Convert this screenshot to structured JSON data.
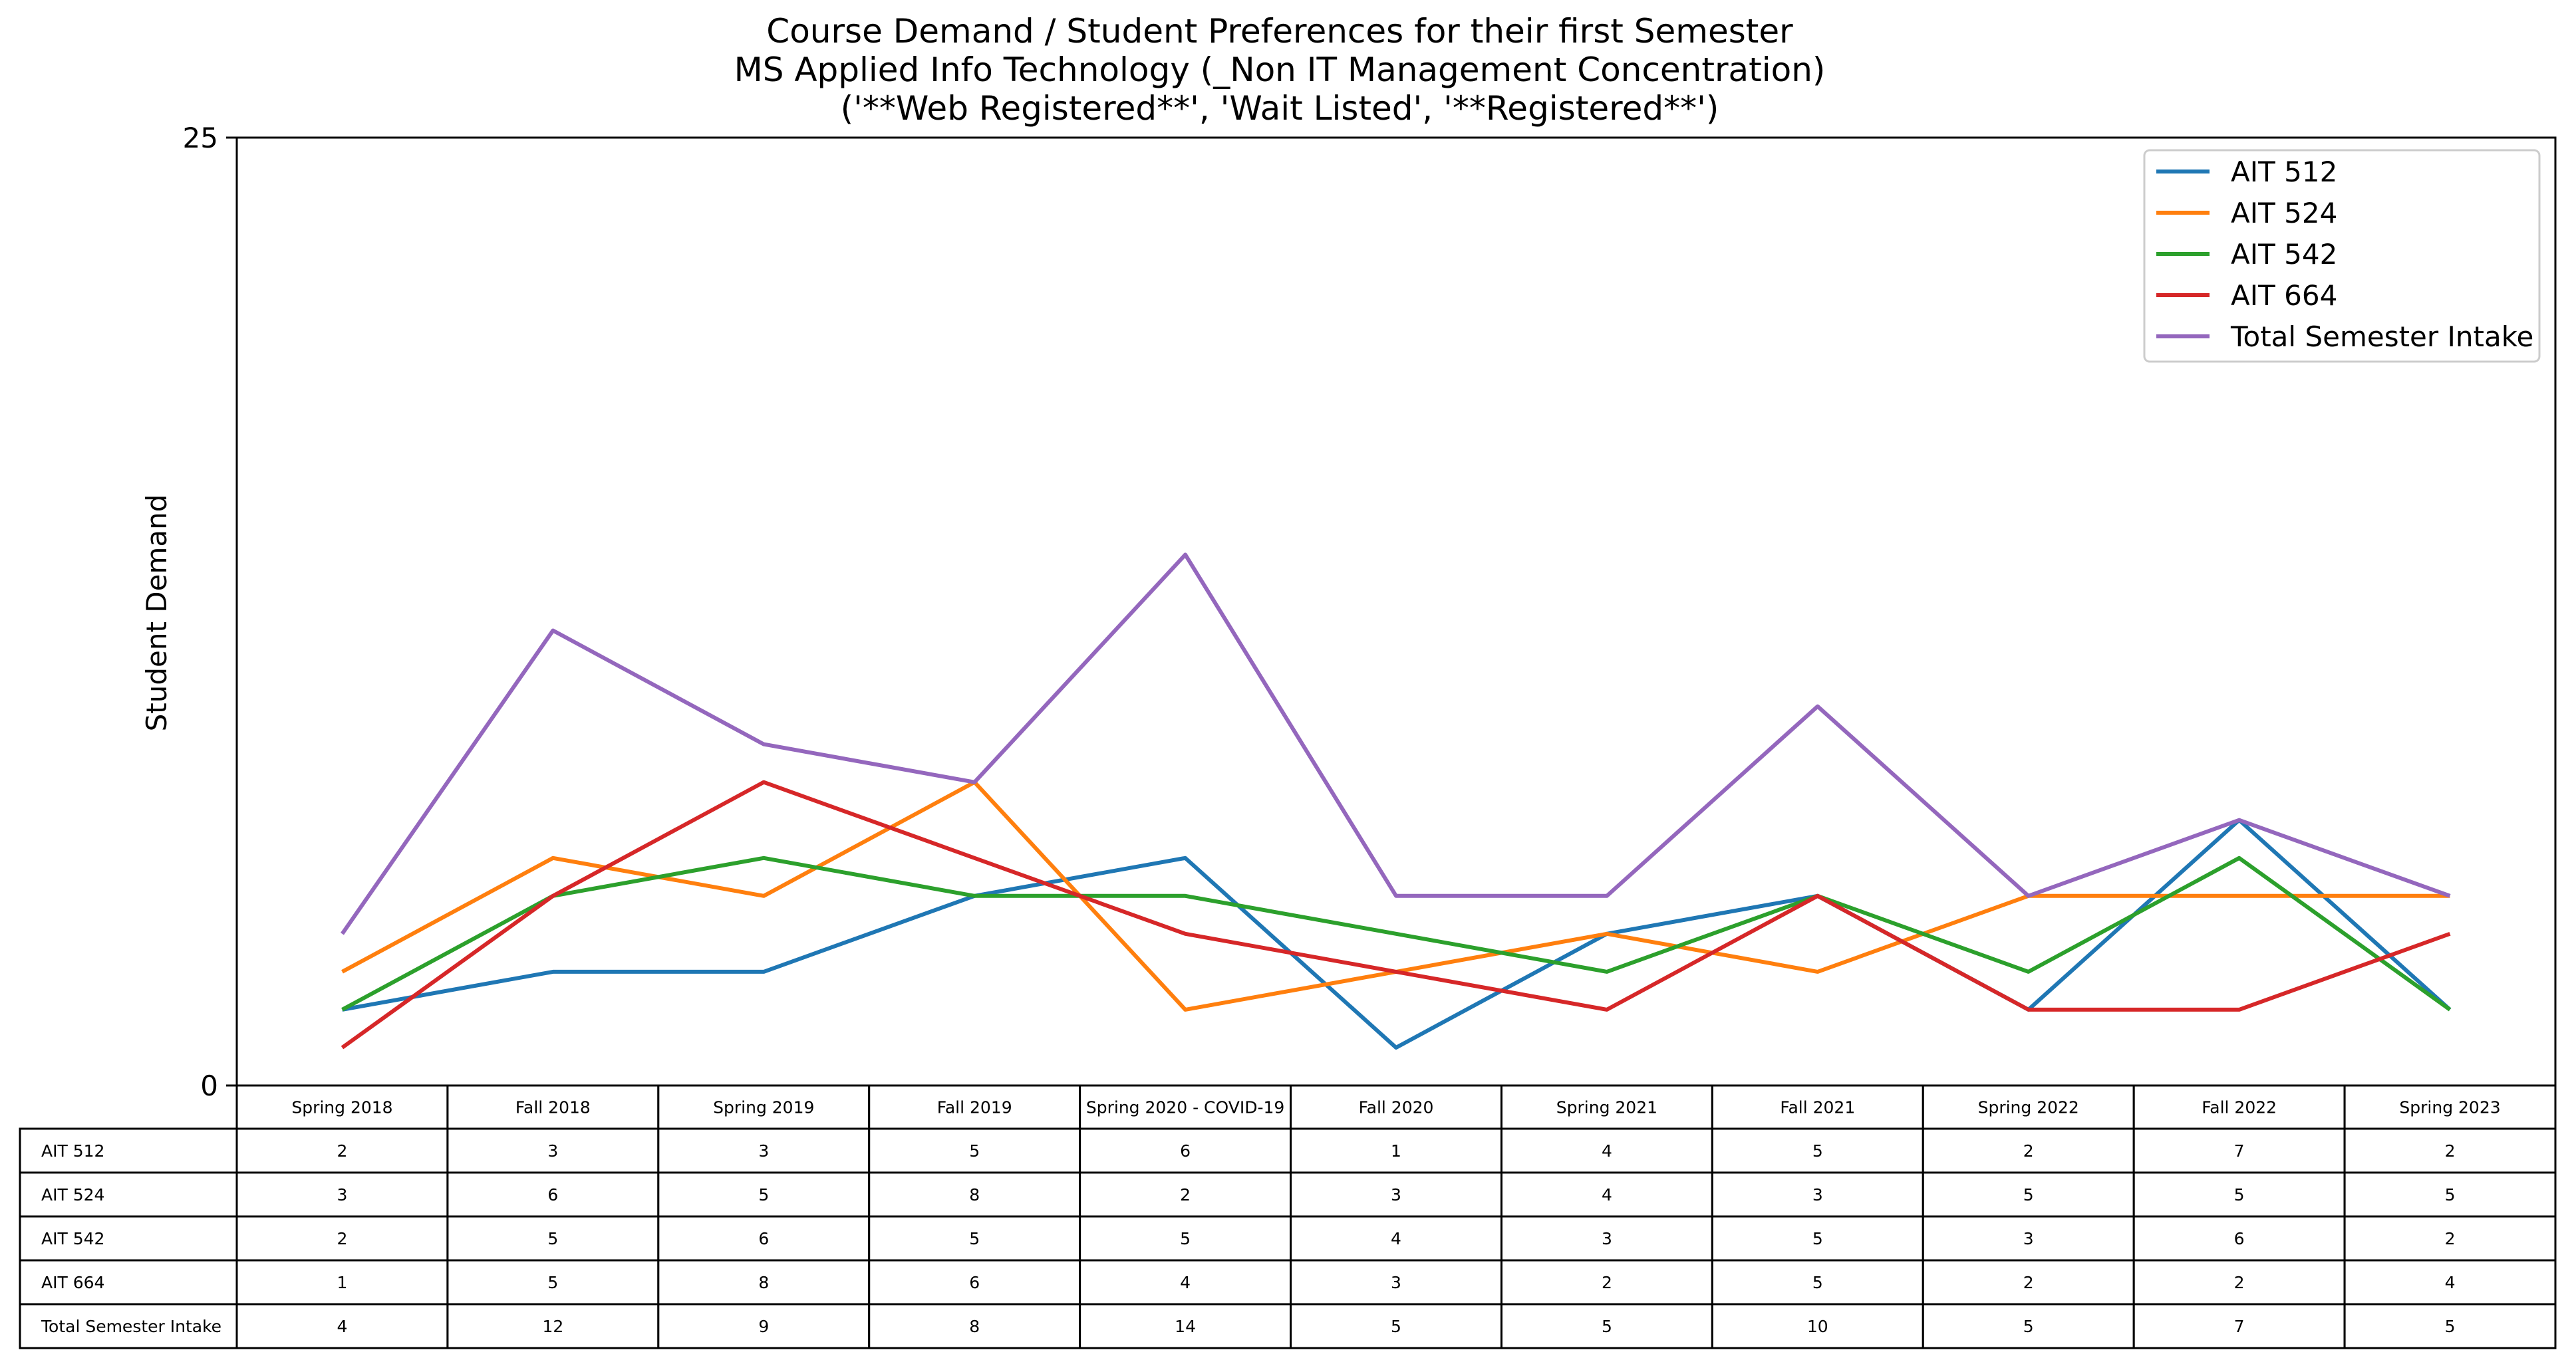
{
  "chart_data": {
    "type": "line",
    "title_lines": [
      "Course Demand / Student Preferences for their first Semester",
      "MS Applied Info Technology (_Non IT Management Concentration)",
      "('**Web Registered**', 'Wait Listed', '**Registered**')"
    ],
    "xlabel": "",
    "ylabel": "Student Demand",
    "ylim": [
      0,
      25
    ],
    "y_ticks": [
      "0",
      "25"
    ],
    "grid": false,
    "legend_position": "top-right",
    "categories": [
      "Spring 2018",
      "Fall 2018",
      "Spring 2019",
      "Fall 2019",
      "Spring 2020 - COVID-19",
      "Fall 2020",
      "Spring 2021",
      "Fall 2021",
      "Spring 2022",
      "Fall 2022",
      "Spring 2023"
    ],
    "series": [
      {
        "name": "AIT 512",
        "color": "#1f77b4",
        "values": [
          2,
          3,
          3,
          5,
          6,
          1,
          4,
          5,
          2,
          7,
          2
        ]
      },
      {
        "name": "AIT 524",
        "color": "#ff7f0e",
        "values": [
          3,
          6,
          5,
          8,
          2,
          3,
          4,
          3,
          5,
          5,
          5
        ]
      },
      {
        "name": "AIT 542",
        "color": "#2ca02c",
        "values": [
          2,
          5,
          6,
          5,
          5,
          4,
          3,
          5,
          3,
          6,
          2
        ]
      },
      {
        "name": "AIT 664",
        "color": "#d62728",
        "values": [
          1,
          5,
          8,
          6,
          4,
          3,
          2,
          5,
          2,
          2,
          4
        ]
      },
      {
        "name": "Total Semester Intake",
        "color": "#9467bd",
        "values": [
          4,
          12,
          9,
          8,
          14,
          5,
          5,
          10,
          5,
          7,
          5
        ]
      }
    ],
    "table": {
      "columns": [
        "Spring 2018",
        "Fall 2018",
        "Spring 2019",
        "Fall 2019",
        "Spring 2020 - COVID-19",
        "Fall 2020",
        "Spring 2021",
        "Fall 2021",
        "Spring 2022",
        "Fall 2022",
        "Spring 2023"
      ],
      "rows": [
        {
          "label": "AIT 512",
          "cells": [
            "2",
            "3",
            "3",
            "5",
            "6",
            "1",
            "4",
            "5",
            "2",
            "7",
            "2"
          ]
        },
        {
          "label": "AIT 524",
          "cells": [
            "3",
            "6",
            "5",
            "8",
            "2",
            "3",
            "4",
            "3",
            "5",
            "5",
            "5"
          ]
        },
        {
          "label": "AIT 542",
          "cells": [
            "2",
            "5",
            "6",
            "5",
            "5",
            "4",
            "3",
            "5",
            "3",
            "6",
            "2"
          ]
        },
        {
          "label": "AIT 664",
          "cells": [
            "1",
            "5",
            "8",
            "6",
            "4",
            "3",
            "2",
            "5",
            "2",
            "2",
            "4"
          ]
        },
        {
          "label": "Total Semester Intake",
          "cells": [
            "4",
            "12",
            "9",
            "8",
            "14",
            "5",
            "5",
            "10",
            "5",
            "7",
            "5"
          ]
        }
      ]
    }
  }
}
